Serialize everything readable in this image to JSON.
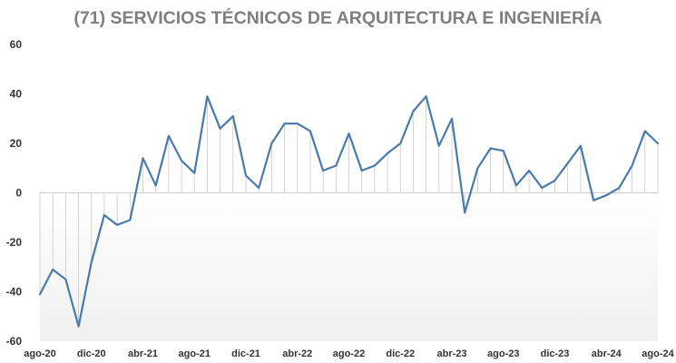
{
  "chart_data": {
    "type": "line",
    "title": "(71) SERVICIOS TÉCNICOS DE ARQUITECTURA E INGENIERÍA",
    "xlabel": "",
    "ylabel": "",
    "ylim": [
      -60,
      60
    ],
    "yticks": [
      "60",
      "40",
      "20",
      "0",
      "-20",
      "-40",
      "-60"
    ],
    "xtick_labels": [
      "ago-20",
      "dic-20",
      "abr-21",
      "ago-21",
      "dic-21",
      "abr-22",
      "ago-22",
      "dic-22",
      "abr-23",
      "ago-23",
      "dic-23",
      "abr-24",
      "ago-24"
    ],
    "x": [
      "ago-20",
      "sep-20",
      "oct-20",
      "nov-20",
      "dic-20",
      "ene-21",
      "feb-21",
      "mar-21",
      "abr-21",
      "may-21",
      "jun-21",
      "jul-21",
      "ago-21",
      "sep-21",
      "oct-21",
      "nov-21",
      "dic-21",
      "ene-22",
      "feb-22",
      "mar-22",
      "abr-22",
      "may-22",
      "jun-22",
      "jul-22",
      "ago-22",
      "sep-22",
      "oct-22",
      "nov-22",
      "dic-22",
      "ene-23",
      "feb-23",
      "mar-23",
      "abr-23",
      "may-23",
      "jun-23",
      "jul-23",
      "ago-23",
      "sep-23",
      "oct-23",
      "nov-23",
      "dic-23",
      "ene-24",
      "feb-24",
      "mar-24",
      "abr-24",
      "may-24",
      "jun-24",
      "jul-24",
      "ago-24"
    ],
    "values": [
      -41,
      -31,
      -35,
      -54,
      -28,
      -9,
      -13,
      -11,
      14,
      3,
      23,
      13,
      8,
      39,
      26,
      31,
      7,
      2,
      20,
      28,
      28,
      25,
      9,
      11,
      24,
      9,
      11,
      16,
      20,
      33,
      39,
      19,
      30,
      -8,
      10,
      18,
      17,
      3,
      9,
      2,
      5,
      12,
      19,
      -3,
      -1,
      2,
      11,
      25,
      20
    ],
    "grid": false,
    "legend": "none",
    "colors": {
      "line": "#4a7aad",
      "dropline": "#c8c8c8",
      "shade": "#f2f2f2"
    }
  }
}
